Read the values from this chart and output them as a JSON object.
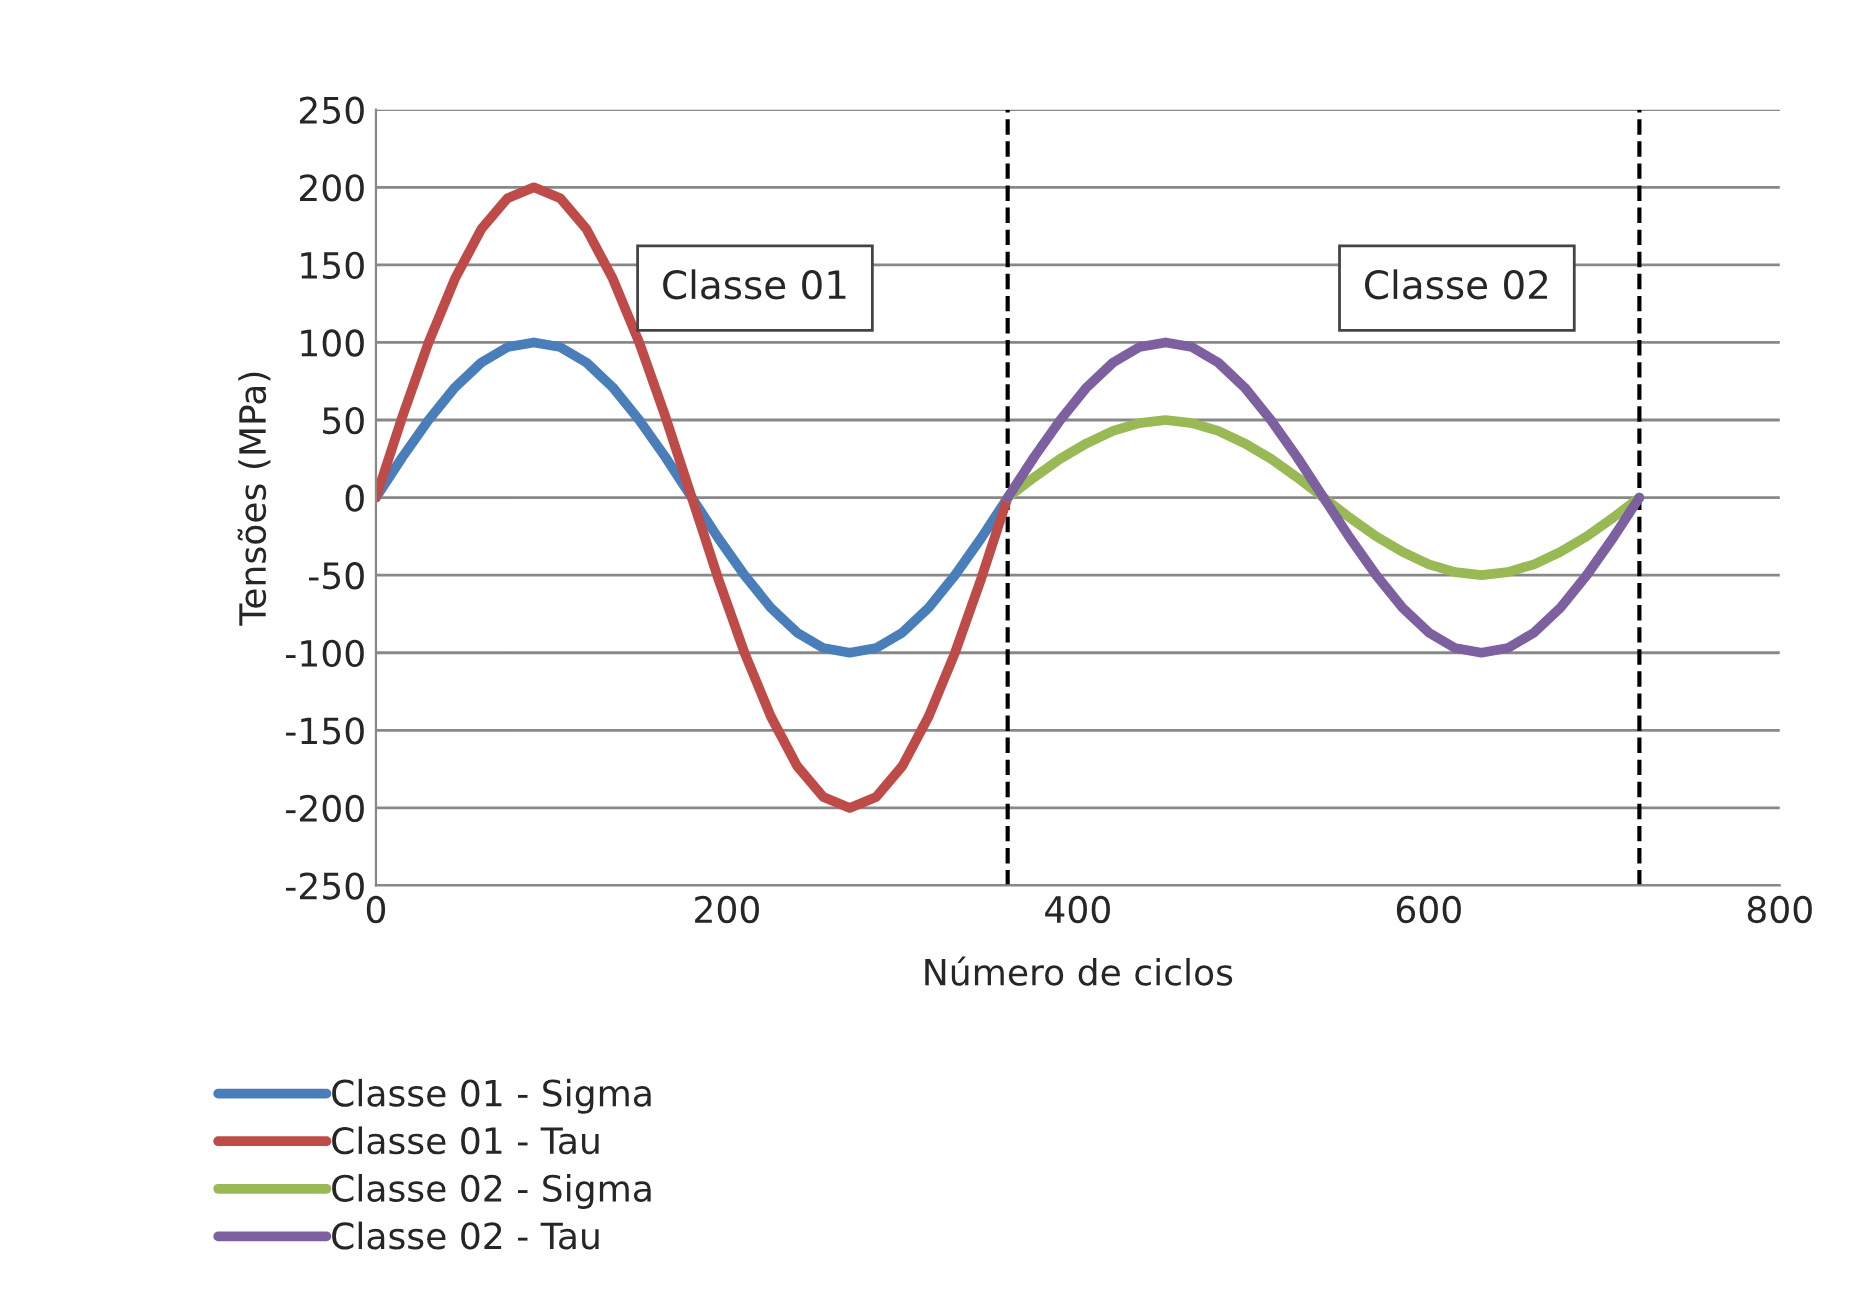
{
  "chart_data": {
    "type": "line",
    "xlabel": "Número de ciclos",
    "ylabel": "Tensões (MPa)",
    "xlim": [
      0,
      800
    ],
    "xticks": [
      0,
      200,
      400,
      600,
      800
    ],
    "ylim": [
      -250,
      250
    ],
    "yticks": [
      -250,
      -200,
      -150,
      -100,
      -50,
      0,
      50,
      100,
      150,
      200,
      250
    ],
    "grid": "y",
    "legend": "bottom",
    "marker": "none",
    "line_style": "solid",
    "annotations": [
      "Classe 01",
      "Classe 02"
    ],
    "ref_lines": [
      {
        "axis": "x",
        "value": 360,
        "color": "#000000",
        "line_style": "dashed"
      },
      {
        "axis": "x",
        "value": 720,
        "color": "#000000",
        "line_style": "dashed"
      }
    ],
    "series": [
      {
        "name": "Classe 01 - Sigma",
        "color": "#4a7ebb",
        "x": [
          0,
          15,
          30,
          45,
          60,
          75,
          90,
          105,
          120,
          135,
          150,
          165,
          180,
          195,
          210,
          225,
          240,
          255,
          270,
          285,
          300,
          315,
          330,
          345,
          360
        ],
        "values": [
          0,
          26,
          50,
          71,
          87,
          97,
          100,
          97,
          87,
          71,
          50,
          26,
          0,
          -26,
          -50,
          -71,
          -87,
          -97,
          -100,
          -97,
          -87,
          -71,
          -50,
          -26,
          0
        ]
      },
      {
        "name": "Classe 01 - Tau",
        "color": "#be4b48",
        "x": [
          0,
          15,
          30,
          45,
          60,
          75,
          90,
          105,
          120,
          135,
          150,
          165,
          180,
          195,
          210,
          225,
          240,
          255,
          270,
          285,
          300,
          315,
          330,
          345,
          360
        ],
        "values": [
          0,
          52,
          100,
          141,
          173,
          193,
          200,
          193,
          173,
          141,
          100,
          52,
          0,
          -52,
          -100,
          -141,
          -173,
          -193,
          -200,
          -193,
          -173,
          -141,
          -100,
          -52,
          0
        ]
      },
      {
        "name": "Classe 02 - Sigma",
        "color": "#98b954",
        "x": [
          360,
          375,
          390,
          405,
          420,
          435,
          450,
          465,
          480,
          495,
          510,
          525,
          540,
          555,
          570,
          585,
          600,
          615,
          630,
          645,
          660,
          675,
          690,
          705,
          720
        ],
        "values": [
          0,
          13,
          25,
          35,
          43,
          48,
          50,
          48,
          43,
          35,
          25,
          13,
          0,
          -13,
          -25,
          -35,
          -43,
          -48,
          -50,
          -48,
          -43,
          -35,
          -25,
          -13,
          0
        ]
      },
      {
        "name": "Classe 02 - Tau",
        "color": "#7d60a0",
        "x": [
          360,
          375,
          390,
          405,
          420,
          435,
          450,
          465,
          480,
          495,
          510,
          525,
          540,
          555,
          570,
          585,
          600,
          615,
          630,
          645,
          660,
          675,
          690,
          705,
          720
        ],
        "values": [
          0,
          26,
          50,
          71,
          87,
          97,
          100,
          97,
          87,
          71,
          50,
          26,
          0,
          -26,
          -50,
          -71,
          -87,
          -97,
          -100,
          -97,
          -87,
          -71,
          -50,
          -26,
          0
        ]
      }
    ]
  }
}
